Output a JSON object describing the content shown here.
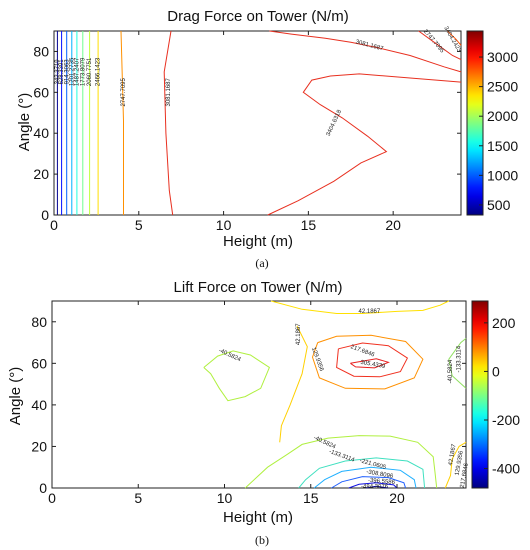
{
  "panels": [
    {
      "caption": "(a)"
    },
    {
      "caption": "(b)"
    }
  ],
  "chart_data": [
    {
      "type": "contour",
      "title": "Drag Force on Tower (N/m)",
      "xlabel": "Height (m)",
      "ylabel": "Angle (°)",
      "xlim": [
        0,
        24
      ],
      "ylim": [
        0,
        90
      ],
      "xticks": [
        0,
        5,
        10,
        15,
        20
      ],
      "yticks": [
        0,
        20,
        40,
        60,
        80
      ],
      "colorbar": {
        "min": 330,
        "max": 3440,
        "ticks": [
          500,
          1000,
          1500,
          2000,
          2500,
          3000
        ]
      },
      "contours": [
        {
          "level": 342,
          "color": "#000090",
          "points": [
            [
              0.2,
              0
            ],
            [
              0.2,
              90
            ]
          ]
        },
        {
          "level": 628,
          "color": "#0010ff",
          "points": [
            [
              0.45,
              0
            ],
            [
              0.45,
              90
            ]
          ]
        },
        {
          "level": 914,
          "color": "#0060ff",
          "points": [
            [
              0.75,
              0
            ],
            [
              0.75,
              90
            ]
          ]
        },
        {
          "level": 1201,
          "color": "#00b0ff",
          "points": [
            [
              1.05,
              0
            ],
            [
              1.05,
              90
            ]
          ]
        },
        {
          "level": 1487,
          "color": "#20ffe0",
          "points": [
            [
              1.35,
              0
            ],
            [
              1.35,
              90
            ]
          ]
        },
        {
          "level": 1773,
          "color": "#70ff90",
          "points": [
            [
              1.7,
              0
            ],
            [
              1.7,
              90
            ]
          ]
        },
        {
          "level": 2060,
          "color": "#c0ff40",
          "points": [
            [
              2.1,
              0
            ],
            [
              2.1,
              90
            ]
          ]
        },
        {
          "level": 2466,
          "color": "#ffe000",
          "points": [
            [
              2.6,
              0
            ],
            [
              2.6,
              90
            ]
          ]
        },
        {
          "level": 2747,
          "color": "#ff9000",
          "points": [
            [
              4.1,
              0
            ],
            [
              4.1,
              46
            ],
            [
              3.95,
              90
            ]
          ]
        },
        {
          "level": 3081,
          "color": "#e83020",
          "points": [
            [
              7.0,
              0
            ],
            [
              6.8,
              12
            ],
            [
              6.6,
              40
            ],
            [
              6.5,
              70
            ],
            [
              6.9,
              90
            ]
          ]
        },
        {
          "level": 3081,
          "color": "#e83020",
          "points": [
            [
              12.7,
              90
            ],
            [
              14,
              88.5
            ],
            [
              16,
              86.5
            ],
            [
              17.5,
              84.5
            ],
            [
              19,
              82
            ],
            [
              21,
              78
            ],
            [
              23,
              72.5
            ],
            [
              24,
              70
            ]
          ]
        },
        {
          "level": 2747,
          "color": "#e83020",
          "points": [
            [
              21.5,
              90
            ],
            [
              22.5,
              84
            ],
            [
              23.5,
              78
            ],
            [
              24,
              76
            ]
          ]
        },
        {
          "level": 3404,
          "color": "#e83020",
          "points": [
            [
              24,
              65
            ],
            [
              21,
              67
            ],
            [
              18,
              69
            ],
            [
              16.3,
              68
            ],
            [
              15.2,
              66
            ],
            [
              14.7,
              60
            ],
            [
              15.7,
              54
            ],
            [
              17,
              47.5
            ],
            [
              18.5,
              38.5
            ],
            [
              19.6,
              31
            ],
            [
              18.1,
              25.5
            ],
            [
              16.5,
              16.5
            ],
            [
              14.4,
              7
            ],
            [
              12.6,
              0
            ]
          ]
        },
        {
          "level": 3404,
          "color": "#ff5000",
          "points": [
            [
              23.2,
              90
            ],
            [
              23.7,
              86
            ],
            [
              24,
              83
            ]
          ]
        }
      ],
      "labels": [
        {
          "text": "3081.1687",
          "x": 6.75,
          "y": 60,
          "angle": 90
        },
        {
          "text": "2747.7095",
          "x": 4.1,
          "y": 60,
          "angle": 90
        },
        {
          "text": "2466.1423",
          "x": 2.6,
          "y": 70,
          "angle": 90
        },
        {
          "text": "2060.7751",
          "x": 2.1,
          "y": 70,
          "angle": 90
        },
        {
          "text": "1773.8079",
          "x": 1.7,
          "y": 70,
          "angle": 90
        },
        {
          "text": "1487.2407",
          "x": 1.35,
          "y": 70,
          "angle": 90
        },
        {
          "text": "1201.2735",
          "x": 1.05,
          "y": 70,
          "angle": 90
        },
        {
          "text": "914.3063",
          "x": 0.75,
          "y": 70,
          "angle": 90
        },
        {
          "text": "628.3391",
          "x": 0.45,
          "y": 70,
          "angle": 90
        },
        {
          "text": "342.3719",
          "x": 0.2,
          "y": 70,
          "angle": 90
        },
        {
          "text": "3081.1687",
          "x": 18.6,
          "y": 83,
          "angle": -15
        },
        {
          "text": "2747.7095",
          "x": 22.4,
          "y": 85,
          "angle": -50
        },
        {
          "text": "3404.2423",
          "x": 23.5,
          "y": 86,
          "angle": -60
        },
        {
          "text": "3404.6318",
          "x": 16.5,
          "y": 45,
          "angle": 65
        }
      ]
    },
    {
      "type": "contour",
      "title": "Lift Force on Tower (N/m)",
      "xlabel": "Height (m)",
      "ylabel": "Angle (°)",
      "xlim": [
        0,
        24
      ],
      "ylim": [
        0,
        90
      ],
      "xticks": [
        0,
        5,
        10,
        15,
        20
      ],
      "yticks": [
        0,
        20,
        40,
        60,
        80
      ],
      "colorbar": {
        "min": -480,
        "max": 290,
        "ticks": [
          200,
          0,
          -200,
          -400
        ]
      },
      "contours": [
        {
          "level": 42.1867,
          "color": "#ffe000",
          "points": [
            [
              12.7,
              90
            ],
            [
              14.5,
              86
            ],
            [
              16.5,
              84
            ],
            [
              18,
              84
            ],
            [
              20,
              85
            ],
            [
              21.5,
              85.5
            ],
            [
              22.5,
              88
            ],
            [
              23,
              90
            ]
          ]
        },
        {
          "level": 42.1867,
          "color": "#ffd000",
          "points": [
            [
              14.2,
              78
            ],
            [
              14.8,
              68
            ],
            [
              14.5,
              55
            ],
            [
              13.8,
              40
            ],
            [
              13.3,
              30
            ],
            [
              13.2,
              22
            ]
          ]
        },
        {
          "level": 42.1867,
          "color": "#ffd000",
          "points": [
            [
              22.8,
              0
            ],
            [
              23.1,
              6
            ],
            [
              23.2,
              14
            ],
            [
              23.6,
              20
            ],
            [
              24,
              22
            ]
          ]
        },
        {
          "level": -40.5824,
          "color": "#b0f040",
          "points": [
            [
              8.8,
              58
            ],
            [
              9.6,
              63.5
            ],
            [
              10.5,
              66
            ],
            [
              11.5,
              64
            ],
            [
              12.6,
              58
            ],
            [
              12.1,
              48
            ],
            [
              11.2,
              44
            ],
            [
              10.2,
              42
            ],
            [
              9.7,
              48
            ],
            [
              9.2,
              55
            ],
            [
              8.8,
              58
            ]
          ]
        },
        {
          "level": -40.5824,
          "color": "#b0f040",
          "points": [
            [
              11.2,
              0
            ],
            [
              12.5,
              10
            ],
            [
              13.6,
              16
            ],
            [
              14.5,
              21
            ],
            [
              16,
              24
            ],
            [
              17.8,
              25.2
            ],
            [
              19.6,
              25
            ],
            [
              21.2,
              22
            ],
            [
              22.1,
              15
            ],
            [
              22.2,
              8
            ],
            [
              22.3,
              0
            ]
          ]
        },
        {
          "level": -40.5824,
          "color": "#90e060",
          "points": [
            [
              24,
              48
            ],
            [
              23.2,
              54
            ],
            [
              23,
              62
            ],
            [
              23.7,
              70
            ],
            [
              24,
              72
            ]
          ]
        },
        {
          "level": 129.9356,
          "color": "#ff9000",
          "points": [
            [
              15.4,
              70
            ],
            [
              16.5,
              73
            ],
            [
              18.5,
              73.5
            ],
            [
              20.5,
              70.5
            ],
            [
              21.5,
              62
            ],
            [
              21,
              53
            ],
            [
              19.3,
              47.7
            ],
            [
              17,
              48
            ],
            [
              15.5,
              53
            ],
            [
              15.1,
              63
            ],
            [
              15.4,
              70
            ]
          ]
        },
        {
          "level": 217.6846,
          "color": "#f03020",
          "points": [
            [
              16.6,
              67
            ],
            [
              18,
              69.8
            ],
            [
              19.5,
              68.5
            ],
            [
              20.6,
              62.5
            ],
            [
              20.2,
              56
            ],
            [
              19,
              53.5
            ],
            [
              17.5,
              53.8
            ],
            [
              16.5,
              58
            ],
            [
              16.6,
              67
            ]
          ]
        },
        {
          "level": 305.4339,
          "color": "#e82020",
          "points": [
            [
              17.3,
              60
            ],
            [
              18.8,
              62.2
            ],
            [
              19.5,
              60.5
            ],
            [
              18.7,
              57.8
            ],
            [
              17.6,
              58.3
            ],
            [
              17.3,
              60
            ]
          ]
        },
        {
          "level": -133.3114,
          "color": "#40e0c0",
          "points": [
            [
              14.3,
              0
            ],
            [
              14.7,
              4
            ],
            [
              15.5,
              9.5
            ],
            [
              17,
              13
            ],
            [
              18.8,
              14.5
            ],
            [
              20.6,
              13
            ],
            [
              21.5,
              9
            ],
            [
              21.6,
              0
            ]
          ]
        },
        {
          "level": -221.0605,
          "color": "#20b0ff",
          "points": [
            [
              15.2,
              0
            ],
            [
              15.8,
              4
            ],
            [
              16.8,
              8
            ],
            [
              18.5,
              10
            ],
            [
              20.2,
              8.5
            ],
            [
              21,
              4
            ],
            [
              21.1,
              0
            ]
          ]
        },
        {
          "level": -308.8096,
          "color": "#2060ff",
          "points": [
            [
              16.2,
              0
            ],
            [
              16.8,
              3
            ],
            [
              18,
              5.5
            ],
            [
              19.5,
              5
            ],
            [
              20.4,
              2.5
            ],
            [
              20.5,
              0
            ]
          ]
        },
        {
          "level": -396.5586,
          "color": "#1010e0",
          "points": [
            [
              17.2,
              0
            ],
            [
              17.8,
              1.8
            ],
            [
              18.8,
              2.5
            ],
            [
              19.8,
              1.5
            ],
            [
              20,
              0
            ]
          ]
        },
        {
          "level": -484.3076,
          "color": "#000090",
          "points": [
            [
              18.2,
              0
            ],
            [
              18.8,
              0.8
            ],
            [
              19.5,
              0
            ]
          ]
        }
      ],
      "labels": [
        {
          "text": "42.1867",
          "x": 18.4,
          "y": 85,
          "angle": 0
        },
        {
          "text": "42.1867",
          "x": 14.3,
          "y": 74,
          "angle": 90
        },
        {
          "text": "-40.5824",
          "x": 10.3,
          "y": 64,
          "angle": -25
        },
        {
          "text": "129.9356",
          "x": 15.4,
          "y": 62,
          "angle": -70
        },
        {
          "text": "217.6846",
          "x": 18.0,
          "y": 66,
          "angle": -20
        },
        {
          "text": "305.4339",
          "x": 18.6,
          "y": 59.5,
          "angle": -10
        },
        {
          "text": "-40.5824",
          "x": 15.8,
          "y": 22,
          "angle": -25
        },
        {
          "text": "-133.3114",
          "x": 16.8,
          "y": 15.5,
          "angle": -20
        },
        {
          "text": "-221.0605",
          "x": 18.6,
          "y": 11.5,
          "angle": -15
        },
        {
          "text": "-308.8096",
          "x": 19.0,
          "y": 6.7,
          "angle": -10
        },
        {
          "text": "-396.5586",
          "x": 19.1,
          "y": 3.2,
          "angle": -5
        },
        {
          "text": "-484.3076",
          "x": 18.7,
          "y": 0.5,
          "angle": 0
        },
        {
          "text": "-133.3114",
          "x": 23.6,
          "y": 62,
          "angle": 90
        },
        {
          "text": "-40.5824",
          "x": 23.1,
          "y": 56,
          "angle": 90
        },
        {
          "text": "42.1867",
          "x": 23.2,
          "y": 16,
          "angle": 80
        },
        {
          "text": "129.9356",
          "x": 23.6,
          "y": 12,
          "angle": 80
        },
        {
          "text": "217.6846",
          "x": 23.9,
          "y": 6,
          "angle": 80
        }
      ]
    }
  ]
}
